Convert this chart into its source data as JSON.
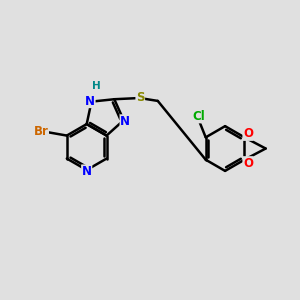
{
  "background_color": "#e0e0e0",
  "bond_color": "#000000",
  "bond_width": 1.8,
  "atom_labels": {
    "Br": {
      "color": "#cc6600",
      "fontsize": 8.5
    },
    "N": {
      "color": "#0000ff",
      "fontsize": 8.5
    },
    "H": {
      "color": "#008888",
      "fontsize": 7.5
    },
    "S": {
      "color": "#888800",
      "fontsize": 8.5
    },
    "Cl": {
      "color": "#00aa00",
      "fontsize": 8.5
    },
    "O": {
      "color": "#ff0000",
      "fontsize": 8.5
    }
  },
  "figsize": [
    3.0,
    3.0
  ],
  "dpi": 100
}
